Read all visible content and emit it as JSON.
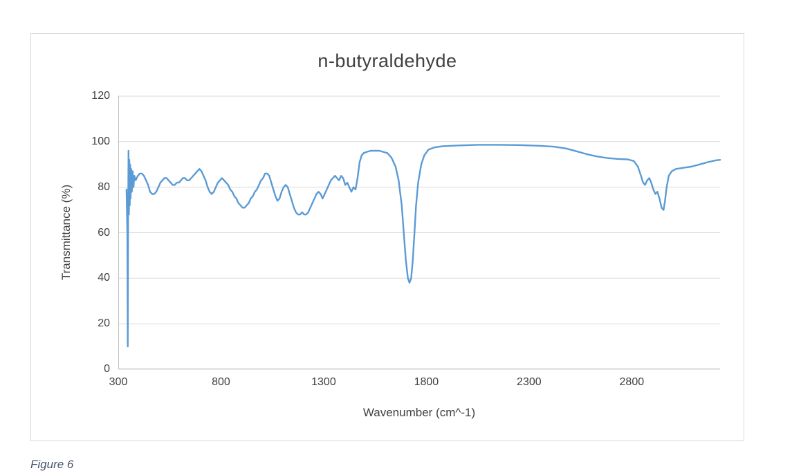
{
  "figure_caption": "Figure 6",
  "chart_data": {
    "type": "line",
    "title": "n-butyraldehyde",
    "xlabel": "Wavenumber (cm^-1)",
    "ylabel": "Transmittance (%)",
    "xlim": [
      300,
      3230
    ],
    "ylim": [
      0,
      120
    ],
    "x_ticks": [
      300,
      800,
      1300,
      1800,
      2300,
      2800
    ],
    "y_ticks": [
      0,
      20,
      40,
      60,
      80,
      100,
      120
    ],
    "grid": "horizontal",
    "legend_position": "none",
    "line_color": "#5b9bd5",
    "gridline_color": "#d9d9d9",
    "axis_color": "#bfbfbf",
    "series": [
      {
        "name": "n-butyraldehyde",
        "points": [
          [
            340,
            79
          ],
          [
            344,
            60
          ],
          [
            346,
            10
          ],
          [
            348,
            70
          ],
          [
            350,
            96
          ],
          [
            352,
            68
          ],
          [
            354,
            92
          ],
          [
            356,
            72
          ],
          [
            358,
            90
          ],
          [
            360,
            75
          ],
          [
            363,
            88
          ],
          [
            366,
            78
          ],
          [
            370,
            87
          ],
          [
            374,
            80
          ],
          [
            378,
            85
          ],
          [
            385,
            83
          ],
          [
            395,
            85
          ],
          [
            405,
            86
          ],
          [
            415,
            86
          ],
          [
            425,
            85
          ],
          [
            435,
            83
          ],
          [
            445,
            81
          ],
          [
            455,
            78
          ],
          [
            465,
            77
          ],
          [
            475,
            77
          ],
          [
            485,
            78
          ],
          [
            495,
            80
          ],
          [
            505,
            82
          ],
          [
            515,
            83
          ],
          [
            525,
            84
          ],
          [
            535,
            84
          ],
          [
            545,
            83
          ],
          [
            555,
            82
          ],
          [
            565,
            81
          ],
          [
            575,
            81
          ],
          [
            585,
            82
          ],
          [
            595,
            82
          ],
          [
            605,
            83
          ],
          [
            615,
            84
          ],
          [
            625,
            84
          ],
          [
            635,
            83
          ],
          [
            645,
            83
          ],
          [
            655,
            84
          ],
          [
            665,
            85
          ],
          [
            675,
            86
          ],
          [
            685,
            87
          ],
          [
            695,
            88
          ],
          [
            705,
            87
          ],
          [
            715,
            85
          ],
          [
            725,
            83
          ],
          [
            735,
            80
          ],
          [
            745,
            78
          ],
          [
            755,
            77
          ],
          [
            765,
            78
          ],
          [
            775,
            80
          ],
          [
            785,
            82
          ],
          [
            795,
            83
          ],
          [
            805,
            84
          ],
          [
            815,
            83
          ],
          [
            825,
            82
          ],
          [
            835,
            81
          ],
          [
            845,
            79
          ],
          [
            855,
            78
          ],
          [
            865,
            76
          ],
          [
            875,
            75
          ],
          [
            885,
            73
          ],
          [
            895,
            72
          ],
          [
            905,
            71
          ],
          [
            915,
            71
          ],
          [
            925,
            72
          ],
          [
            935,
            73
          ],
          [
            945,
            75
          ],
          [
            955,
            76
          ],
          [
            965,
            78
          ],
          [
            975,
            79
          ],
          [
            985,
            81
          ],
          [
            995,
            83
          ],
          [
            1005,
            84
          ],
          [
            1015,
            86
          ],
          [
            1025,
            86
          ],
          [
            1035,
            85
          ],
          [
            1045,
            82
          ],
          [
            1055,
            79
          ],
          [
            1065,
            76
          ],
          [
            1075,
            74
          ],
          [
            1085,
            75
          ],
          [
            1095,
            78
          ],
          [
            1105,
            80
          ],
          [
            1115,
            81
          ],
          [
            1125,
            80
          ],
          [
            1135,
            77
          ],
          [
            1145,
            74
          ],
          [
            1155,
            71
          ],
          [
            1165,
            69
          ],
          [
            1175,
            68
          ],
          [
            1185,
            68
          ],
          [
            1195,
            69
          ],
          [
            1205,
            68
          ],
          [
            1215,
            68
          ],
          [
            1225,
            69
          ],
          [
            1235,
            71
          ],
          [
            1245,
            73
          ],
          [
            1255,
            75
          ],
          [
            1265,
            77
          ],
          [
            1275,
            78
          ],
          [
            1285,
            77
          ],
          [
            1295,
            75
          ],
          [
            1305,
            77
          ],
          [
            1315,
            79
          ],
          [
            1325,
            81
          ],
          [
            1335,
            83
          ],
          [
            1345,
            84
          ],
          [
            1355,
            85
          ],
          [
            1365,
            84
          ],
          [
            1375,
            83
          ],
          [
            1385,
            85
          ],
          [
            1395,
            84
          ],
          [
            1405,
            81
          ],
          [
            1415,
            82
          ],
          [
            1425,
            80
          ],
          [
            1435,
            78
          ],
          [
            1445,
            80
          ],
          [
            1455,
            79
          ],
          [
            1465,
            84
          ],
          [
            1475,
            91
          ],
          [
            1485,
            94
          ],
          [
            1495,
            95
          ],
          [
            1510,
            95.5
          ],
          [
            1530,
            96
          ],
          [
            1550,
            96
          ],
          [
            1570,
            96
          ],
          [
            1590,
            95.5
          ],
          [
            1610,
            95
          ],
          [
            1630,
            93
          ],
          [
            1650,
            89
          ],
          [
            1665,
            83
          ],
          [
            1680,
            72
          ],
          [
            1690,
            60
          ],
          [
            1700,
            48
          ],
          [
            1710,
            40
          ],
          [
            1718,
            38
          ],
          [
            1726,
            40
          ],
          [
            1734,
            48
          ],
          [
            1742,
            60
          ],
          [
            1750,
            72
          ],
          [
            1760,
            82
          ],
          [
            1775,
            90
          ],
          [
            1790,
            94
          ],
          [
            1810,
            96.5
          ],
          [
            1840,
            97.5
          ],
          [
            1880,
            98
          ],
          [
            1950,
            98.3
          ],
          [
            2050,
            98.6
          ],
          [
            2150,
            98.6
          ],
          [
            2250,
            98.5
          ],
          [
            2350,
            98.2
          ],
          [
            2420,
            97.8
          ],
          [
            2480,
            97
          ],
          [
            2530,
            95.8
          ],
          [
            2580,
            94.5
          ],
          [
            2630,
            93.5
          ],
          [
            2680,
            92.8
          ],
          [
            2730,
            92.4
          ],
          [
            2780,
            92.2
          ],
          [
            2810,
            91.5
          ],
          [
            2830,
            89
          ],
          [
            2845,
            85
          ],
          [
            2855,
            82
          ],
          [
            2865,
            81
          ],
          [
            2875,
            83
          ],
          [
            2885,
            84
          ],
          [
            2895,
            82
          ],
          [
            2905,
            79
          ],
          [
            2915,
            77
          ],
          [
            2925,
            78
          ],
          [
            2935,
            75
          ],
          [
            2945,
            71
          ],
          [
            2955,
            70
          ],
          [
            2962,
            74
          ],
          [
            2970,
            80
          ],
          [
            2980,
            85
          ],
          [
            2995,
            87
          ],
          [
            3015,
            88
          ],
          [
            3050,
            88.5
          ],
          [
            3090,
            89
          ],
          [
            3130,
            90
          ],
          [
            3170,
            91
          ],
          [
            3210,
            91.8
          ],
          [
            3230,
            92
          ]
        ]
      }
    ]
  }
}
